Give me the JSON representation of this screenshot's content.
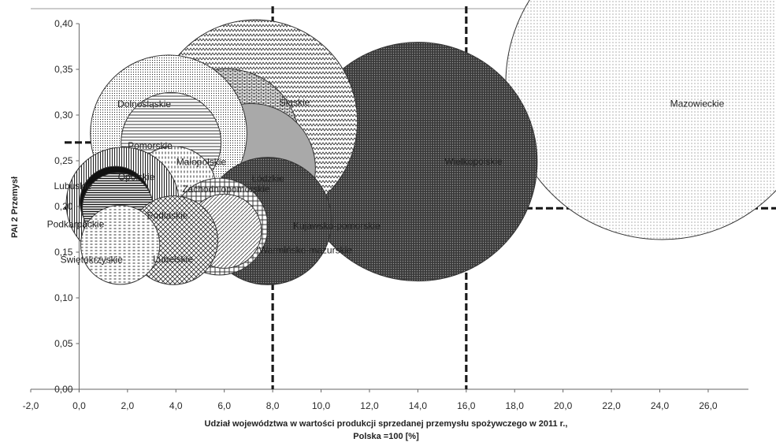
{
  "chart_data": {
    "type": "bubble",
    "title": "",
    "xlabel_line1": "Udział województwa w wartości produkcji sprzedanej przemysłu spożywczego w 2011 r.,",
    "xlabel_line2": "Polska =100 [%]",
    "ylabel": "PAI 2 Przemysł",
    "xlim": [
      -2,
      27.5
    ],
    "ylim": [
      0,
      0.4
    ],
    "x_ticks": [
      "-2,0",
      "0,0",
      "2,0",
      "4,0",
      "6,0",
      "8,0",
      "10,0",
      "12,0",
      "14,0",
      "16,0",
      "18,0",
      "20,0",
      "22,0",
      "24,0",
      "26,0"
    ],
    "x_tick_values": [
      -2,
      0,
      2,
      4,
      6,
      8,
      10,
      12,
      14,
      16,
      18,
      20,
      22,
      24,
      26
    ],
    "y_ticks": [
      "0,00",
      "0,05",
      "0,10",
      "0,15",
      "0,20",
      "0,25",
      "0,30",
      "0,35",
      "0,40"
    ],
    "y_tick_values": [
      0,
      0.05,
      0.1,
      0.15,
      0.2,
      0.25,
      0.3,
      0.35,
      0.4
    ],
    "grid": false,
    "reference_lines": {
      "vertical": [
        8.0,
        16.0
      ],
      "horizontal": [
        0.27,
        0.198
      ]
    },
    "points": [
      {
        "label": "Mazowieckie",
        "x": 24.1,
        "y": 0.335,
        "size": 19.4,
        "fill": "dots-fine"
      },
      {
        "label": "Wielkopolskie",
        "x": 14.0,
        "y": 0.249,
        "size": 14.8,
        "fill": "dark-dots"
      },
      {
        "label": "Śląskie",
        "x": 7.3,
        "y": 0.293,
        "size": 12.6,
        "fill": "zigzag"
      },
      {
        "label": "Małopolskie",
        "x": 6.1,
        "y": 0.271,
        "size": 9.0,
        "fill": "bricks"
      },
      {
        "label": "Łódzkie",
        "x": 7.1,
        "y": 0.242,
        "size": 8.0,
        "fill": "gray"
      },
      {
        "label": "Dolnośląskie",
        "x": 3.7,
        "y": 0.28,
        "size": 9.7,
        "fill": "dots-coarse"
      },
      {
        "label": "Pomorskie",
        "x": 3.8,
        "y": 0.27,
        "size": 6.2,
        "fill": "hlines"
      },
      {
        "label": "Kujawsko-pomorskie",
        "x": 7.8,
        "y": 0.184,
        "size": 7.9,
        "fill": "dark-dots"
      },
      {
        "label": "Zachodniopomorskie",
        "x": 3.9,
        "y": 0.219,
        "size": 5.3,
        "fill": "vdashes"
      },
      {
        "label": "Opolskie",
        "x": 1.8,
        "y": 0.203,
        "size": 7.0,
        "fill": "vlines"
      },
      {
        "label": "Lubuskie",
        "x": 1.5,
        "y": 0.205,
        "size": 4.4,
        "fill": "black"
      },
      {
        "label": "Podkarpackie",
        "x": 1.6,
        "y": 0.198,
        "size": 4.4,
        "fill": "hlines-bold"
      },
      {
        "label": "Podlaskie",
        "x": 5.8,
        "y": 0.178,
        "size": 6.0,
        "fill": "grid"
      },
      {
        "label": "Warmińsko-mazurskie",
        "x": 6.0,
        "y": 0.173,
        "size": 4.6,
        "fill": "diag"
      },
      {
        "label": "Lubelskie",
        "x": 3.9,
        "y": 0.163,
        "size": 5.5,
        "fill": "cross"
      },
      {
        "label": "Świętokrzyskie",
        "x": 1.7,
        "y": 0.158,
        "size": 4.9,
        "fill": "hdashes"
      }
    ]
  }
}
